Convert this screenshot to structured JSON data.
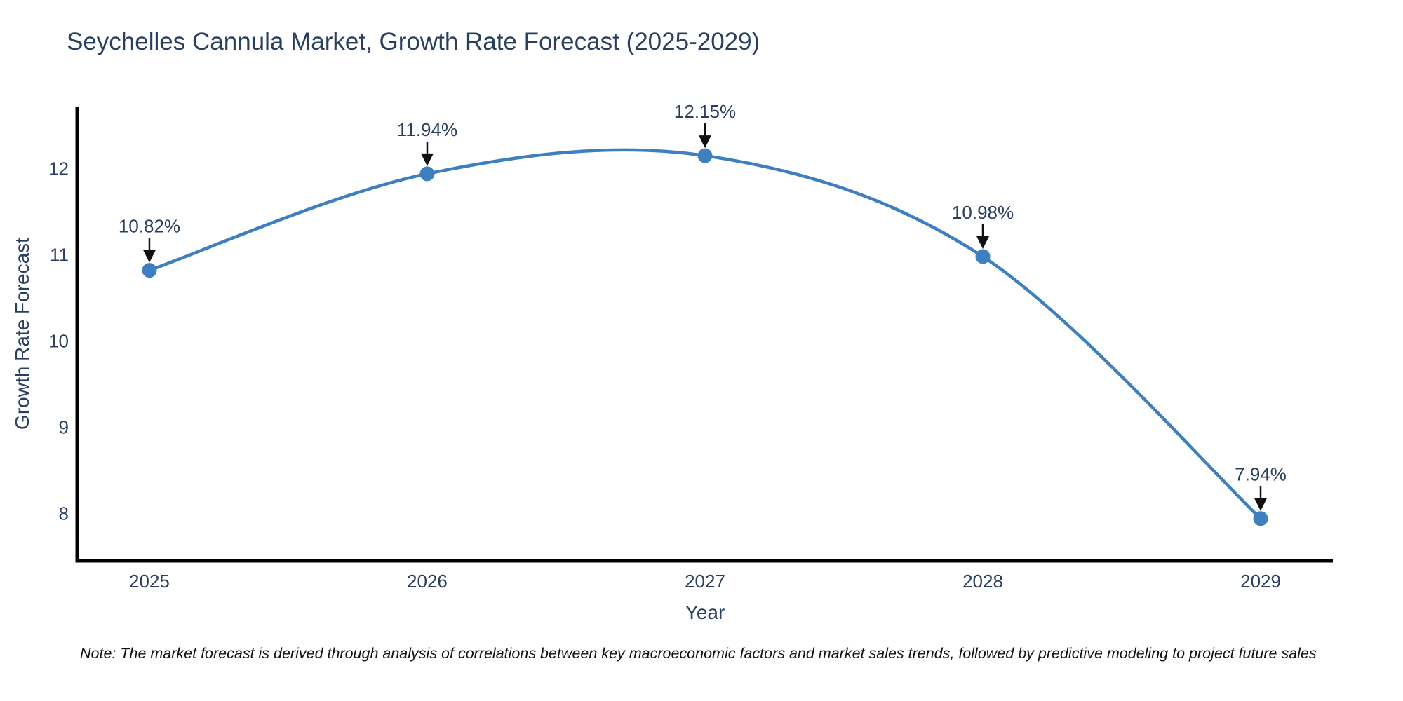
{
  "chart": {
    "title": "Seychelles Cannula Market, Growth Rate Forecast (2025-2029)",
    "note": "Note: The market forecast is derived through analysis of correlations between key macroeconomic factors and market sales trends, followed by predictive modeling to project future sales"
  },
  "chart_data": {
    "type": "line",
    "line_shape": "spline",
    "x": [
      2025,
      2026,
      2027,
      2028,
      2029
    ],
    "series": [
      {
        "name": "Growth Rate Forecast",
        "values": [
          10.82,
          11.94,
          12.15,
          10.98,
          7.94
        ]
      }
    ],
    "point_labels": [
      "10.82%",
      "11.94%",
      "12.15%",
      "10.98%",
      "7.94%"
    ],
    "title": "Seychelles Cannula Market, Growth Rate Forecast (2025-2029)",
    "xlabel": "Year",
    "ylabel": "Growth Rate Forecast",
    "xticks": [
      "2025",
      "2026",
      "2027",
      "2028",
      "2029"
    ],
    "yticks": [
      8,
      9,
      10,
      11,
      12
    ],
    "xlim": [
      2024.74,
      2029.26
    ],
    "ylim": [
      7.45,
      12.72
    ],
    "grid": false,
    "legend": "none",
    "colors": {
      "line": "#3e7fc0",
      "marker": "#3e7fc0",
      "font": "#2a3f5f",
      "axis": "#000000",
      "arrow": "#111111"
    }
  }
}
